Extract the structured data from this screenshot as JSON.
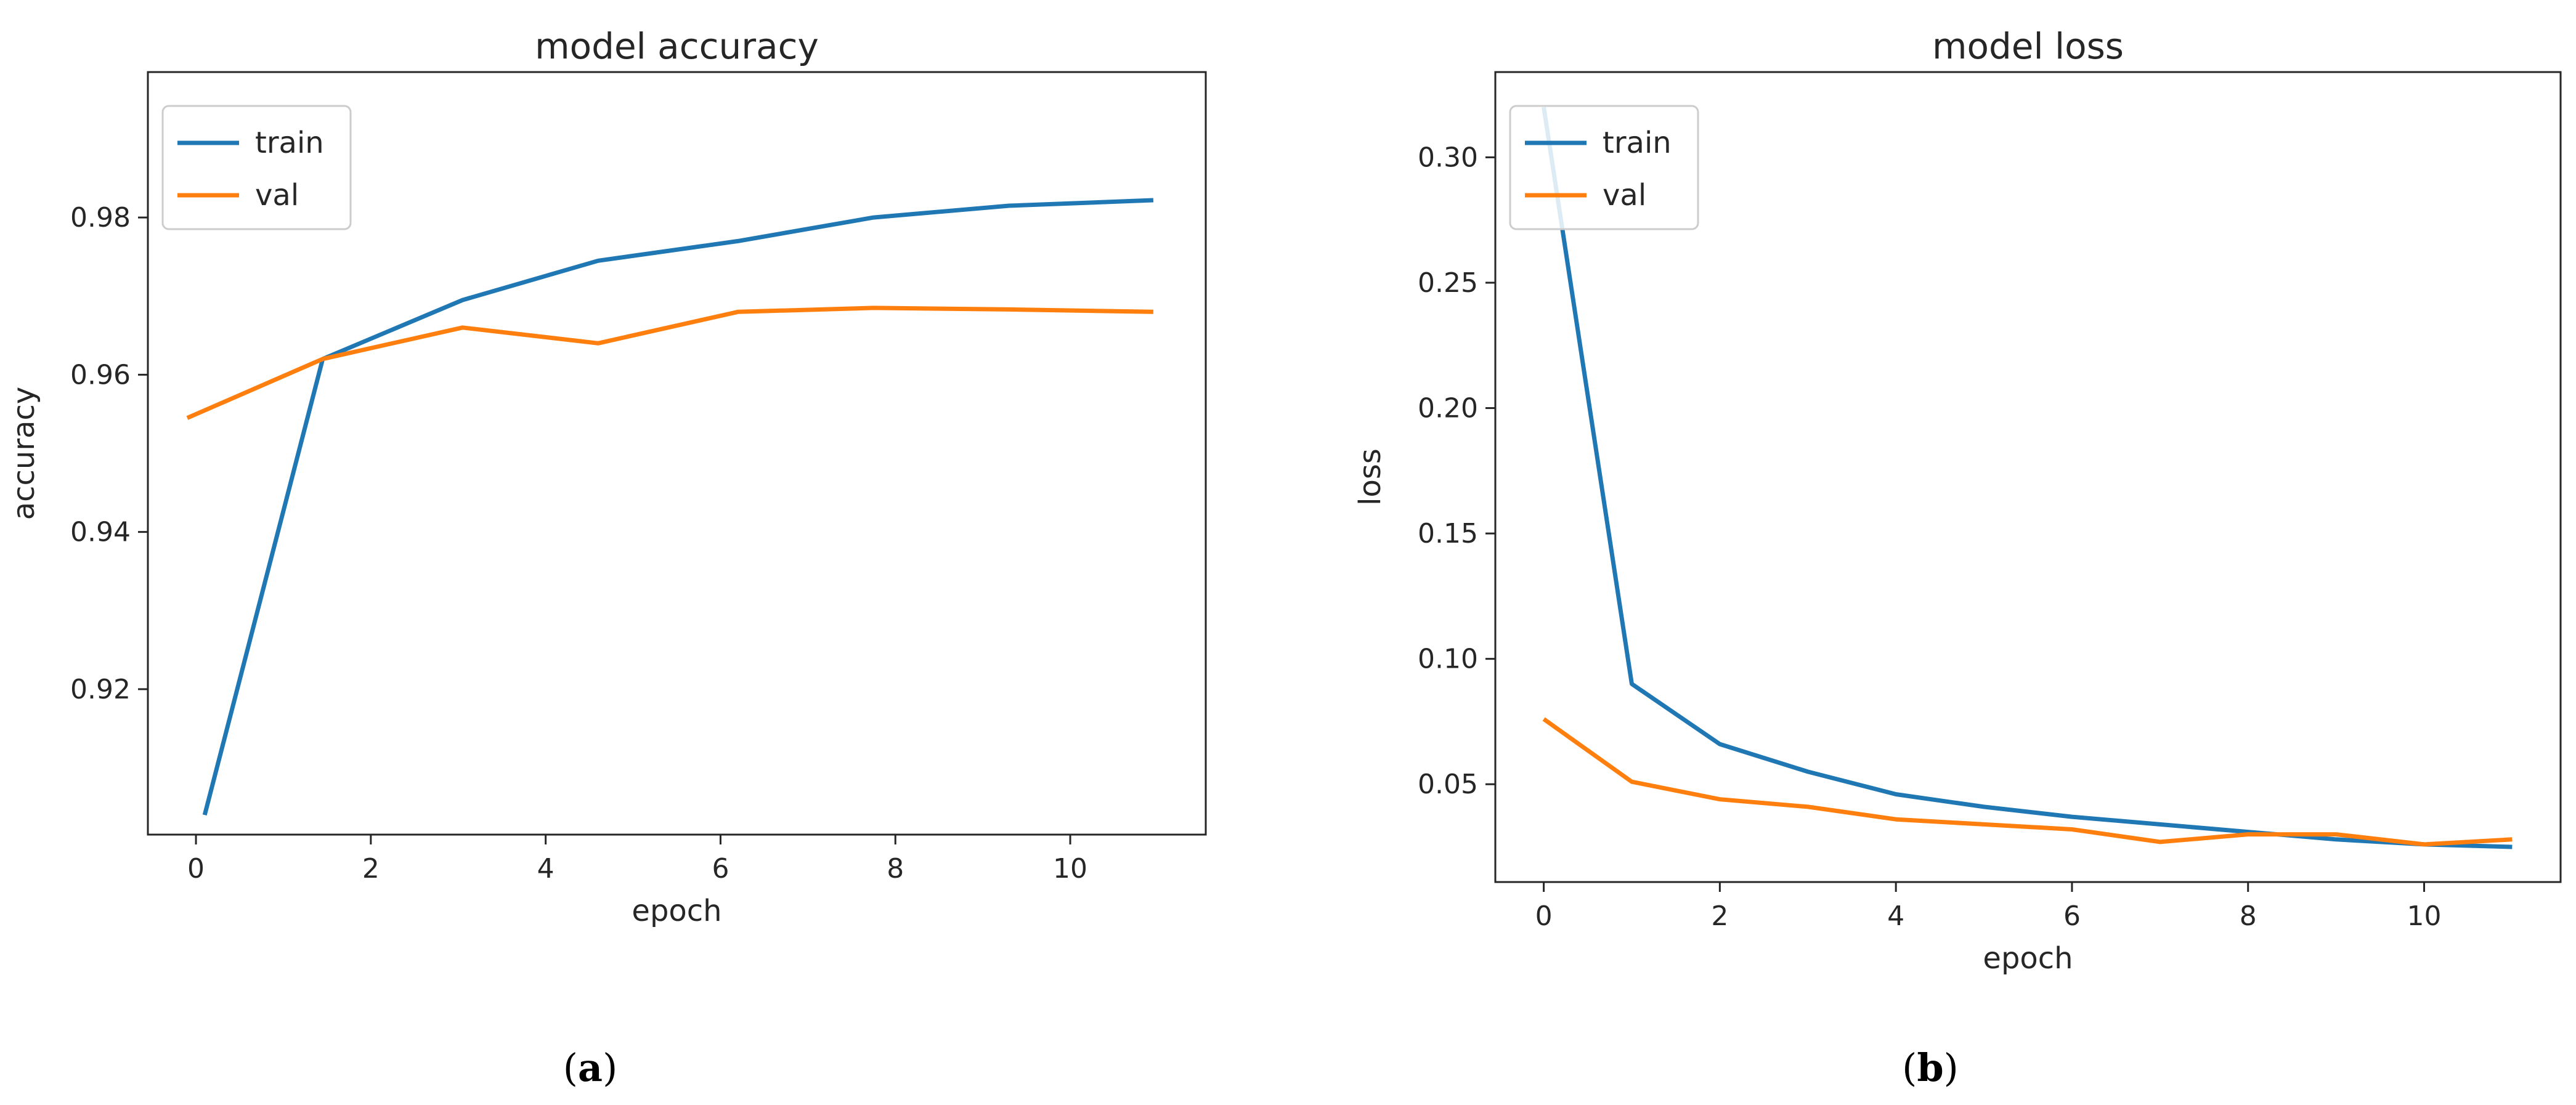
{
  "chart_data": [
    {
      "type": "line",
      "title": "model accuracy",
      "xlabel": "epoch",
      "ylabel": "accuracy",
      "caption_letter": "a",
      "xlim": [
        -0.55,
        11.55
      ],
      "ylim": [
        0.9015,
        0.9985
      ],
      "xticks": [
        0,
        2,
        4,
        6,
        8,
        10
      ],
      "yticks": [
        0.92,
        0.94,
        0.96,
        0.98
      ],
      "ytick_labels": [
        "0.92",
        "0.94",
        "0.96",
        "0.98"
      ],
      "grid": false,
      "legend": "upper left",
      "series": [
        {
          "name": "train",
          "color": "#1f77b4",
          "x": [
            0.1,
            1.45,
            3.05,
            4.6,
            6.2,
            7.75,
            9.3,
            10.95
          ],
          "y": [
            0.904,
            0.962,
            0.9695,
            0.9745,
            0.977,
            0.98,
            0.9815,
            0.9822
          ]
        },
        {
          "name": "val",
          "color": "#ff7f0e",
          "x": [
            -0.1,
            1.45,
            3.05,
            4.6,
            6.2,
            7.75,
            9.3,
            10.95
          ],
          "y": [
            0.9545,
            0.962,
            0.966,
            0.964,
            0.968,
            0.9685,
            0.9683,
            0.968
          ]
        }
      ]
    },
    {
      "type": "line",
      "title": "model loss",
      "xlabel": "epoch",
      "ylabel": "loss",
      "caption_letter": "b",
      "xlim": [
        -0.55,
        11.55
      ],
      "ylim": [
        0.011,
        0.334
      ],
      "xticks": [
        0,
        2,
        4,
        6,
        8,
        10
      ],
      "yticks": [
        0.05,
        0.1,
        0.15,
        0.2,
        0.25,
        0.3
      ],
      "ytick_labels": [
        "0.05",
        "0.10",
        "0.15",
        "0.20",
        "0.25",
        "0.30"
      ],
      "grid": false,
      "legend": "upper left",
      "series": [
        {
          "name": "train",
          "color": "#1f77b4",
          "x": [
            0,
            1,
            2,
            3,
            4,
            5,
            6,
            7,
            8,
            9,
            10,
            11
          ],
          "y": [
            0.32,
            0.09,
            0.066,
            0.055,
            0.046,
            0.041,
            0.037,
            0.034,
            0.031,
            0.028,
            0.026,
            0.025
          ]
        },
        {
          "name": "val",
          "color": "#ff7f0e",
          "x": [
            0,
            1,
            2,
            3,
            4,
            5,
            6,
            7,
            8,
            9,
            10,
            11
          ],
          "y": [
            0.076,
            0.051,
            0.044,
            0.041,
            0.036,
            0.034,
            0.032,
            0.027,
            0.03,
            0.03,
            0.026,
            0.028
          ]
        }
      ]
    }
  ]
}
